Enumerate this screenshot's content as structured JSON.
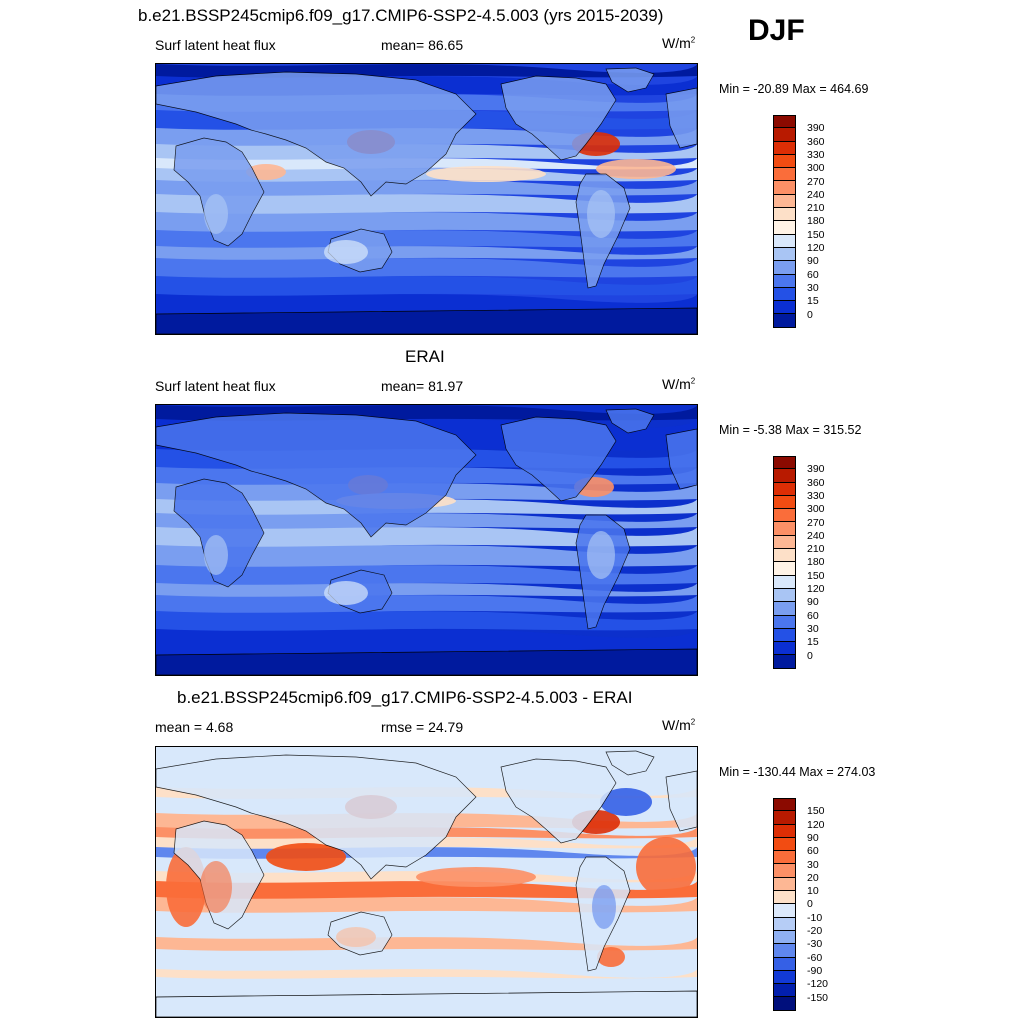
{
  "season": "DJF",
  "panels": [
    {
      "title": "b.e21.BSSP245cmip6.f09_g17.CMIP6-SSP2-4.5.003 (yrs 2015-2039)",
      "left_label": "Surf latent heat flux",
      "center_label": "mean=  86.65",
      "units": "W/m",
      "units_sup": "2",
      "minmax": "Min = -20.89 Max = 464.69",
      "colorbar": {
        "labels": [
          "390",
          "360",
          "330",
          "300",
          "270",
          "240",
          "210",
          "180",
          "150",
          "120",
          "90",
          "60",
          "30",
          "15",
          "0"
        ],
        "colors": [
          "#8b0a00",
          "#b81a00",
          "#dd2e05",
          "#f24c12",
          "#fa6d3a",
          "#fc9066",
          "#fdb794",
          "#fde0c8",
          "#fff3e6",
          "#d9e8fb",
          "#a9c5f4",
          "#7a9ef0",
          "#4b76ee",
          "#2451e6",
          "#0b2fd2",
          "#001a9e"
        ]
      },
      "map_style": "model"
    },
    {
      "title": "ERAI",
      "left_label": "Surf latent heat flux",
      "center_label": "mean=  81.97",
      "units": "W/m",
      "units_sup": "2",
      "minmax": "Min =  -5.38 Max = 315.52",
      "colorbar": {
        "labels": [
          "390",
          "360",
          "330",
          "300",
          "270",
          "240",
          "210",
          "180",
          "150",
          "120",
          "90",
          "60",
          "30",
          "15",
          "0"
        ],
        "colors": [
          "#8b0a00",
          "#b81a00",
          "#dd2e05",
          "#f24c12",
          "#fa6d3a",
          "#fc9066",
          "#fdb794",
          "#fde0c8",
          "#fff3e6",
          "#d9e8fb",
          "#a9c5f4",
          "#7a9ef0",
          "#4b76ee",
          "#2451e6",
          "#0b2fd2",
          "#001a9e"
        ]
      },
      "map_style": "obs"
    },
    {
      "title": "b.e21.BSSP245cmip6.f09_g17.CMIP6-SSP2-4.5.003 - ERAI",
      "left_label": "mean =   4.68",
      "center_label": "rmse =  24.79",
      "units": "W/m",
      "units_sup": "2",
      "minmax": "Min = -130.44 Max = 274.03",
      "colorbar": {
        "labels": [
          "150",
          "120",
          "90",
          "60",
          "30",
          "20",
          "10",
          "0",
          "-10",
          "-20",
          "-30",
          "-60",
          "-90",
          "-120",
          "-150"
        ],
        "colors": [
          "#8b0a00",
          "#b81a00",
          "#dd2e05",
          "#f24c12",
          "#fa6d3a",
          "#fc9066",
          "#fdb794",
          "#fde0c8",
          "#dce9fb",
          "#b6cdf6",
          "#8fb0f2",
          "#5f87ee",
          "#3560e6",
          "#123ad6",
          "#021fae",
          "#000f7c"
        ]
      },
      "map_style": "diff"
    }
  ]
}
